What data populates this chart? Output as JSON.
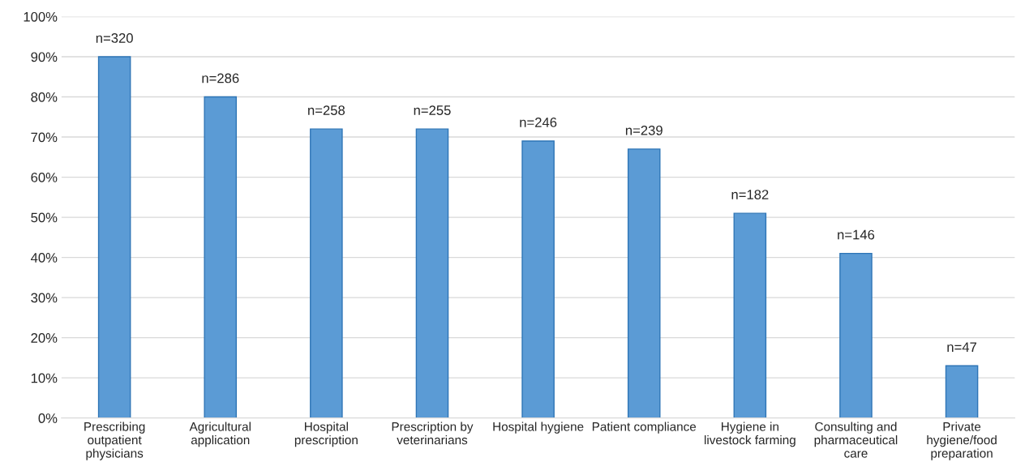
{
  "chart_data": {
    "type": "bar",
    "categories": [
      "Prescribing outpatient physicians",
      "Agricultural application",
      "Hospital prescription",
      "Prescription by veterinarians",
      "Hospital hygiene",
      "Patient compliance",
      "Hygiene in livestock farming",
      "Consulting and pharmaceutical care",
      "Private hygiene/food preparation"
    ],
    "values": [
      90,
      80,
      72,
      72,
      69,
      67,
      51,
      41,
      13
    ],
    "annotations": [
      {
        "text": "n=320",
        "x": "Prescribing outpatient physicians",
        "y": 90
      },
      {
        "text": "n=286",
        "x": "Agricultural application",
        "y": 80
      },
      {
        "text": "n=258",
        "x": "Hospital prescription",
        "y": 72
      },
      {
        "text": "n=255",
        "x": "Prescription by veterinarians",
        "y": 72
      },
      {
        "text": "n=246",
        "x": "Hospital hygiene",
        "y": 69
      },
      {
        "text": "n=239",
        "x": "Patient compliance",
        "y": 67
      },
      {
        "text": "n=182",
        "x": "Hygiene in livestock farming",
        "y": 51
      },
      {
        "text": "n=146",
        "x": "Consulting and pharmaceutical care",
        "y": 41
      },
      {
        "text": "n=47",
        "x": "Private hygiene/food preparation",
        "y": 13
      }
    ],
    "color": "#5b9bd5",
    "ylim": [
      0,
      100
    ],
    "yticks": [
      {
        "value": 0,
        "label": "0%"
      },
      {
        "value": 10,
        "label": "10%"
      },
      {
        "value": 20,
        "label": "20%"
      },
      {
        "value": 30,
        "label": "30%"
      },
      {
        "value": 40,
        "label": "40%"
      },
      {
        "value": 50,
        "label": "50%"
      },
      {
        "value": 60,
        "label": "60%"
      },
      {
        "value": 70,
        "label": "70%"
      },
      {
        "value": 80,
        "label": "80%"
      },
      {
        "value": 90,
        "label": "90%"
      },
      {
        "value": 100,
        "label": "100%"
      }
    ],
    "grid": "y",
    "legend": false
  }
}
